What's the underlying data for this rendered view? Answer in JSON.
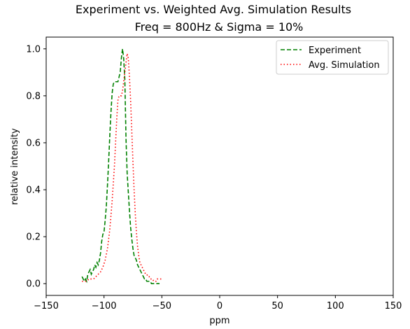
{
  "chart_data": {
    "type": "line",
    "title": "Experiment vs. Weighted Avg. Simulation Results",
    "subtitle": "Freq = 800Hz & Sigma = 10%",
    "xlabel": "ppm",
    "ylabel": "relative intensity",
    "xlim": [
      -150,
      150
    ],
    "ylim": [
      -0.05,
      1.05
    ],
    "xticks": [
      -150,
      -100,
      -50,
      0,
      50,
      100,
      150
    ],
    "xtick_labels": [
      "−150",
      "−100",
      "−50",
      "0",
      "50",
      "100",
      "150"
    ],
    "yticks": [
      0.0,
      0.2,
      0.4,
      0.6,
      0.8,
      1.0
    ],
    "ytick_labels": [
      "0.0",
      "0.2",
      "0.4",
      "0.6",
      "0.8",
      "1.0"
    ],
    "grid": false,
    "legend_position": "top-right",
    "series": [
      {
        "name": "Experiment",
        "color": "#008000",
        "style": "dashed",
        "x": [
          -119,
          -118,
          -117,
          -116,
          -115,
          -114,
          -113,
          -112,
          -111,
          -110,
          -109,
          -108,
          -107,
          -106,
          -105,
          -104,
          -103,
          -102,
          -101,
          -100,
          -99,
          -98,
          -97,
          -96,
          -95,
          -94,
          -93,
          -92,
          -91,
          -90,
          -89,
          -88,
          -87,
          -86,
          -85,
          -84,
          -83,
          -82,
          -81,
          -80,
          -79,
          -78,
          -77,
          -76,
          -75,
          -74,
          -73,
          -72,
          -71,
          -70,
          -69,
          -68,
          -67,
          -66,
          -65,
          -64,
          -63,
          -62,
          -61,
          -60,
          -59,
          -58,
          -57,
          -56,
          -55,
          -54,
          -53,
          -52
        ],
        "y": [
          0.03,
          0.02,
          0.01,
          0.02,
          0.01,
          0.04,
          0.05,
          0.06,
          0.04,
          0.05,
          0.06,
          0.08,
          0.07,
          0.09,
          0.08,
          0.1,
          0.13,
          0.18,
          0.21,
          0.22,
          0.27,
          0.33,
          0.42,
          0.52,
          0.63,
          0.73,
          0.81,
          0.85,
          0.86,
          0.86,
          0.86,
          0.86,
          0.88,
          0.9,
          0.96,
          1.0,
          0.96,
          0.87,
          0.62,
          0.47,
          0.39,
          0.31,
          0.24,
          0.19,
          0.15,
          0.12,
          0.11,
          0.1,
          0.08,
          0.07,
          0.06,
          0.05,
          0.04,
          0.03,
          0.02,
          0.02,
          0.01,
          0.01,
          0.01,
          0.01,
          0.0,
          0.0,
          0.0,
          0.0,
          0.0,
          0.0,
          0.0,
          0.0
        ]
      },
      {
        "name": "Avg. Simulation",
        "color": "#ff0000",
        "style": "dotted",
        "x": [
          -119,
          -117,
          -115,
          -113,
          -111,
          -109,
          -107,
          -105,
          -103,
          -101,
          -99,
          -97,
          -95,
          -93,
          -91,
          -90,
          -89,
          -88,
          -87,
          -86,
          -85,
          -84,
          -83,
          -82,
          -81,
          -80,
          -79,
          -78,
          -77,
          -76,
          -75,
          -74,
          -73,
          -72,
          -71,
          -70,
          -69,
          -68,
          -67,
          -66,
          -65,
          -64,
          -63,
          -62,
          -61,
          -60,
          -59,
          -58,
          -57,
          -56,
          -55,
          -54,
          -53,
          -52,
          -51,
          -50
        ],
        "y": [
          0.01,
          0.01,
          0.01,
          0.02,
          0.02,
          0.02,
          0.03,
          0.04,
          0.05,
          0.07,
          0.1,
          0.15,
          0.23,
          0.35,
          0.5,
          0.6,
          0.7,
          0.78,
          0.8,
          0.8,
          0.8,
          0.82,
          0.86,
          0.9,
          0.94,
          0.98,
          0.96,
          0.88,
          0.78,
          0.65,
          0.52,
          0.4,
          0.3,
          0.22,
          0.16,
          0.12,
          0.09,
          0.08,
          0.07,
          0.06,
          0.05,
          0.04,
          0.04,
          0.03,
          0.03,
          0.02,
          0.02,
          0.02,
          0.01,
          0.01,
          0.01,
          0.02,
          0.02,
          0.02,
          0.02,
          0.02
        ]
      }
    ]
  }
}
